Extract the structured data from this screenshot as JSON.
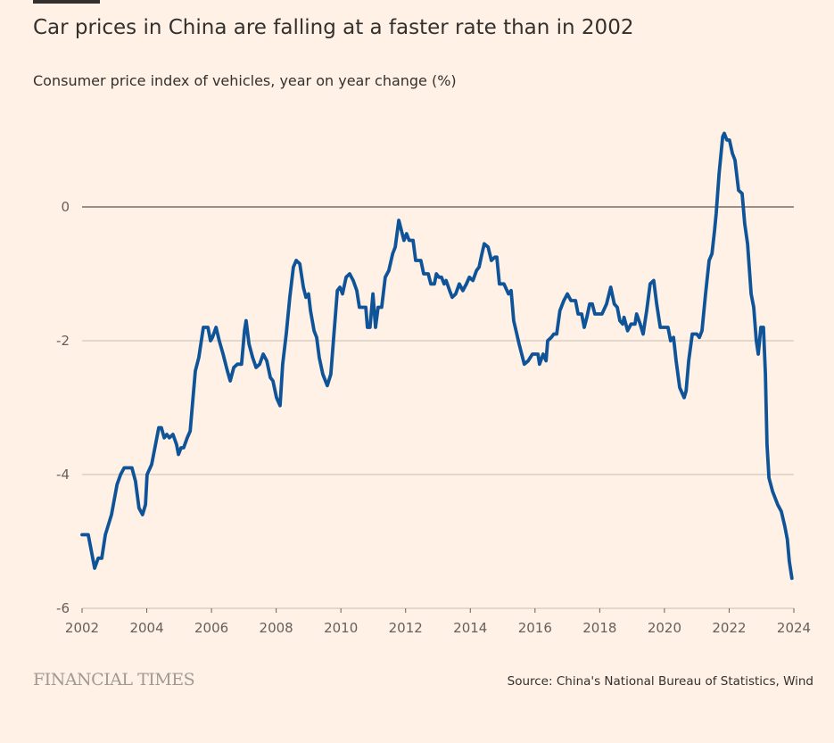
{
  "header": {
    "title": "Car prices in China are falling at a faster rate than in 2002",
    "subtitle": "Consumer price index of vehicles, year on year change (%)"
  },
  "footer": {
    "logo": "FINANCIAL TIMES",
    "source": "Source: China's National Bureau of Statistics, Wind"
  },
  "colors": {
    "background": "#fff1e5",
    "line": "#0f5499",
    "zero_line": "#33302e",
    "grid": "#c9bfb5"
  },
  "chart_data": {
    "type": "line",
    "title": "Car prices in China are falling at a faster rate than in 2002",
    "ylabel": "Consumer price index of vehicles, year on year change (%)",
    "xlabel": "",
    "xlim": [
      2002,
      2024
    ],
    "ylim": [
      -6,
      1.2
    ],
    "grid": true,
    "x_ticks": [
      "2002",
      "2004",
      "2006",
      "2008",
      "2010",
      "2012",
      "2014",
      "2016",
      "2018",
      "2020",
      "2022",
      "2024"
    ],
    "y_ticks": [
      "0",
      "-2",
      "-4",
      "-6"
    ],
    "series": [
      {
        "x": [
          2002,
          2002.19,
          2002.27,
          2002.39,
          2002.5,
          2002.61,
          2002.72,
          2002.91,
          2003.08,
          2003.19,
          2003.3,
          2003.54,
          2003.65,
          2003.76,
          2003.87,
          2003.96,
          2004.01,
          2004.15,
          2004.29,
          2004.37,
          2004.45,
          2004.54,
          2004.62,
          2004.7,
          2004.81,
          2004.92,
          2004.98,
          2005.06,
          2005.14,
          2005.25,
          2005.34,
          2005.42,
          2005.5,
          2005.61,
          2005.75,
          2005.89,
          2005.97,
          2006.03,
          2006.14,
          2006.24,
          2006.36,
          2006.49,
          2006.58,
          2006.69,
          2006.8,
          2006.93,
          2007.02,
          2007.07,
          2007.16,
          2007.27,
          2007.38,
          2007.49,
          2007.6,
          2007.71,
          2007.82,
          2007.9,
          2008.01,
          2008.12,
          2008.2,
          2008.31,
          2008.42,
          2008.53,
          2008.62,
          2008.73,
          2008.84,
          2008.92,
          2009.0,
          2009.06,
          2009.17,
          2009.25,
          2009.33,
          2009.44,
          2009.58,
          2009.69,
          2009.77,
          2009.89,
          2009.97,
          2010.05,
          2010.16,
          2010.27,
          2010.38,
          2010.49,
          2010.57,
          2010.77,
          2010.82,
          2010.9,
          2010.99,
          2011.07,
          2011.15,
          2011.26,
          2011.37,
          2011.48,
          2011.6,
          2011.68,
          2011.79,
          2011.87,
          2011.95,
          2012.03,
          2012.11,
          2012.23,
          2012.31,
          2012.47,
          2012.56,
          2012.7,
          2012.78,
          2012.89,
          2012.95,
          2013.03,
          2013.11,
          2013.19,
          2013.25,
          2013.36,
          2013.44,
          2013.55,
          2013.66,
          2013.77,
          2013.88,
          2013.97,
          2014.08,
          2014.19,
          2014.27,
          2014.36,
          2014.43,
          2014.55,
          2014.65,
          2014.76,
          2014.82,
          2014.9,
          2015.04,
          2015.18,
          2015.26,
          2015.34,
          2015.51,
          2015.67,
          2015.79,
          2015.92,
          2016.09,
          2016.14,
          2016.25,
          2016.34,
          2016.39,
          2016.5,
          2016.58,
          2016.67,
          2016.77,
          2016.89,
          2017.0,
          2017.11,
          2017.25,
          2017.33,
          2017.44,
          2017.52,
          2017.6,
          2017.69,
          2017.77,
          2017.85,
          2018.07,
          2018.21,
          2018.34,
          2018.45,
          2018.54,
          2018.62,
          2018.71,
          2018.75,
          2018.86,
          2018.97,
          2019.09,
          2019.14,
          2019.25,
          2019.34,
          2019.45,
          2019.56,
          2019.67,
          2019.76,
          2019.87,
          2020.11,
          2020.19,
          2020.28,
          2020.36,
          2020.47,
          2020.61,
          2020.67,
          2020.75,
          2020.86,
          2021.0,
          2021.08,
          2021.16,
          2021.27,
          2021.38,
          2021.47,
          2021.55,
          2021.6,
          2021.69,
          2021.8,
          2021.85,
          2021.93,
          2022.01,
          2022.1,
          2022.18,
          2022.29,
          2022.4,
          2022.48,
          2022.57,
          2022.68,
          2022.76,
          2022.84,
          2022.9,
          2022.98,
          2023.06,
          2023.12,
          2023.17,
          2023.23,
          2023.34,
          2023.5,
          2023.61,
          2023.72,
          2023.8,
          2023.86,
          2023.94
        ],
        "y": [
          -4.9,
          -4.9,
          -5.1,
          -5.4,
          -5.25,
          -5.25,
          -4.9,
          -4.6,
          -4.15,
          -4.0,
          -3.9,
          -3.9,
          -4.1,
          -4.5,
          -4.6,
          -4.45,
          -4.0,
          -3.85,
          -3.5,
          -3.3,
          -3.3,
          -3.45,
          -3.4,
          -3.45,
          -3.4,
          -3.55,
          -3.7,
          -3.6,
          -3.6,
          -3.45,
          -3.35,
          -2.9,
          -2.45,
          -2.25,
          -1.8,
          -1.8,
          -2.0,
          -1.95,
          -1.8,
          -2.0,
          -2.2,
          -2.45,
          -2.6,
          -2.4,
          -2.35,
          -2.35,
          -1.85,
          -1.7,
          -2.05,
          -2.25,
          -2.4,
          -2.35,
          -2.2,
          -2.3,
          -2.55,
          -2.6,
          -2.85,
          -2.97,
          -2.35,
          -1.9,
          -1.35,
          -0.9,
          -0.8,
          -0.85,
          -1.2,
          -1.35,
          -1.3,
          -1.55,
          -1.85,
          -1.95,
          -2.25,
          -2.5,
          -2.67,
          -2.5,
          -2.0,
          -1.25,
          -1.2,
          -1.3,
          -1.05,
          -1.0,
          -1.1,
          -1.25,
          -1.5,
          -1.5,
          -1.8,
          -1.8,
          -1.3,
          -1.8,
          -1.5,
          -1.5,
          -1.05,
          -0.95,
          -0.7,
          -0.6,
          -0.2,
          -0.35,
          -0.5,
          -0.4,
          -0.5,
          -0.5,
          -0.8,
          -0.8,
          -1.0,
          -1.0,
          -1.15,
          -1.15,
          -1.0,
          -1.05,
          -1.05,
          -1.15,
          -1.1,
          -1.25,
          -1.35,
          -1.3,
          -1.15,
          -1.25,
          -1.15,
          -1.05,
          -1.1,
          -0.95,
          -0.9,
          -0.7,
          -0.55,
          -0.6,
          -0.8,
          -0.75,
          -0.75,
          -1.15,
          -1.15,
          -1.3,
          -1.25,
          -1.7,
          -2.05,
          -2.35,
          -2.3,
          -2.2,
          -2.2,
          -2.35,
          -2.2,
          -2.3,
          -2.0,
          -1.95,
          -1.9,
          -1.9,
          -1.55,
          -1.4,
          -1.3,
          -1.4,
          -1.4,
          -1.6,
          -1.6,
          -1.8,
          -1.65,
          -1.45,
          -1.45,
          -1.6,
          -1.6,
          -1.45,
          -1.2,
          -1.45,
          -1.5,
          -1.7,
          -1.75,
          -1.65,
          -1.85,
          -1.75,
          -1.75,
          -1.6,
          -1.75,
          -1.9,
          -1.55,
          -1.15,
          -1.1,
          -1.45,
          -1.8,
          -1.8,
          -2.0,
          -1.95,
          -2.3,
          -2.7,
          -2.85,
          -2.75,
          -2.3,
          -1.9,
          -1.9,
          -1.95,
          -1.85,
          -1.3,
          -0.8,
          -0.7,
          -0.35,
          -0.1,
          0.5,
          1.05,
          1.1,
          1.0,
          1.0,
          0.8,
          0.7,
          0.25,
          0.2,
          -0.25,
          -0.55,
          -1.3,
          -1.5,
          -2.0,
          -2.2,
          -1.8,
          -1.8,
          -2.5,
          -3.55,
          -4.05,
          -4.25,
          -4.45,
          -4.55,
          -4.77,
          -4.97,
          -5.3,
          -5.55
        ]
      }
    ]
  }
}
